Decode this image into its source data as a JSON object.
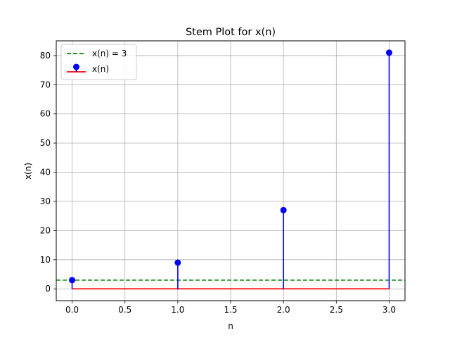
{
  "chart_data": {
    "type": "stem",
    "title": "Stem Plot for x(n)",
    "xlabel": "n",
    "ylabel": "x(n)",
    "xlim": [
      -0.15,
      3.15
    ],
    "ylim": [
      -4.05,
      85.05
    ],
    "x_ticks": [
      0.0,
      0.5,
      1.0,
      1.5,
      2.0,
      2.5,
      3.0
    ],
    "x_tick_labels": [
      "0.0",
      "0.5",
      "1.0",
      "1.5",
      "2.0",
      "2.5",
      "3.0"
    ],
    "y_ticks": [
      0,
      10,
      20,
      30,
      40,
      50,
      60,
      70,
      80
    ],
    "y_tick_labels": [
      "0",
      "10",
      "20",
      "30",
      "40",
      "50",
      "60",
      "70",
      "80"
    ],
    "grid": true,
    "legend_position": "top-left",
    "series": [
      {
        "name": "x(n)",
        "kind": "stem",
        "x": [
          0,
          1,
          2,
          3
        ],
        "y": [
          3,
          9,
          27,
          81
        ],
        "marker_color": "#0000ff",
        "stem_color": "#0000ff",
        "baseline_color": "#ff0000",
        "baseline_value": 0
      }
    ],
    "reference_lines": [
      {
        "name": "x(n) = 3",
        "orientation": "horizontal",
        "y": 3,
        "color": "#008000",
        "style": "dashed"
      }
    ],
    "legend": [
      {
        "label": "x(n) = 3",
        "type": "dashed-line",
        "color": "#008000"
      },
      {
        "label": "x(n)",
        "type": "stem",
        "color": "#0000ff",
        "baseline_color": "#ff0000"
      }
    ]
  }
}
